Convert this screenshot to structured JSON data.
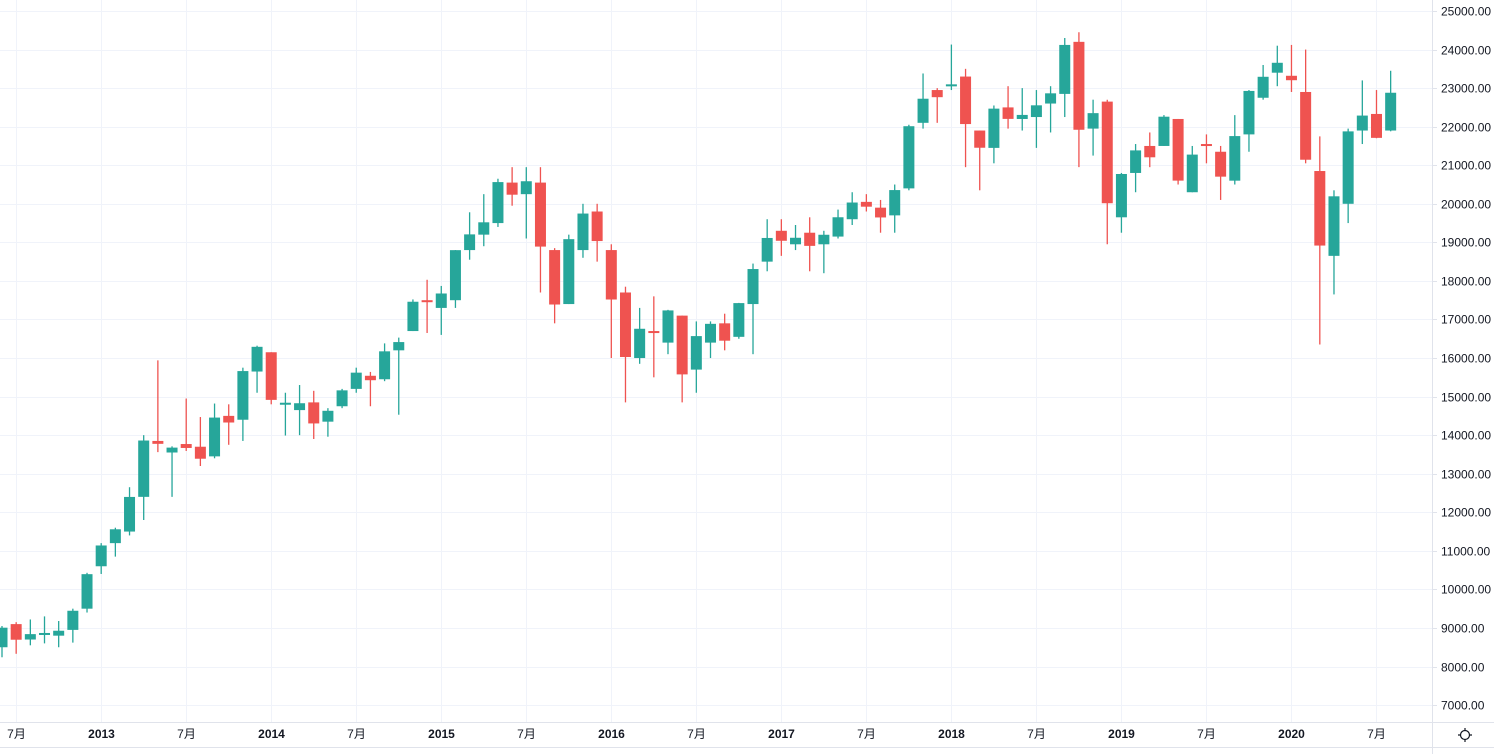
{
  "colors": {
    "up": "#26a69a",
    "down": "#ef5350",
    "grid": "#f0f3fa",
    "axis_border": "#e0e3eb",
    "text": "#131722"
  },
  "settings_icon": "gear-icon",
  "chart_data": {
    "type": "candlestick",
    "interval": "monthly",
    "ylim": [
      6800,
      25200
    ],
    "grid": true,
    "y_ticks": [
      {
        "value": 25000,
        "label": "25000.00"
      },
      {
        "value": 24000,
        "label": "24000.00"
      },
      {
        "value": 23000,
        "label": "23000.00"
      },
      {
        "value": 22000,
        "label": "22000.00"
      },
      {
        "value": 21000,
        "label": "21000.00"
      },
      {
        "value": 20000,
        "label": "20000.00"
      },
      {
        "value": 19000,
        "label": "19000.00"
      },
      {
        "value": 18000,
        "label": "18000.00"
      },
      {
        "value": 17000,
        "label": "17000.00"
      },
      {
        "value": 16000,
        "label": "16000.00"
      },
      {
        "value": 15000,
        "label": "15000.00"
      },
      {
        "value": 14000,
        "label": "14000.00"
      },
      {
        "value": 13000,
        "label": "13000.00"
      },
      {
        "value": 12000,
        "label": "12000.00"
      },
      {
        "value": 11000,
        "label": "11000.00"
      },
      {
        "value": 10000,
        "label": "10000.00"
      },
      {
        "value": 9000,
        "label": "9000.00"
      },
      {
        "value": 8000,
        "label": "8000.00"
      },
      {
        "value": 7000,
        "label": "7000.00"
      }
    ],
    "x_ticks": [
      {
        "index": 1,
        "label": "7月"
      },
      {
        "index": 7,
        "label": "2013"
      },
      {
        "index": 13,
        "label": "7月"
      },
      {
        "index": 19,
        "label": "2014"
      },
      {
        "index": 25,
        "label": "7月"
      },
      {
        "index": 31,
        "label": "2015"
      },
      {
        "index": 37,
        "label": "7月"
      },
      {
        "index": 43,
        "label": "2016"
      },
      {
        "index": 49,
        "label": "7月"
      },
      {
        "index": 55,
        "label": "2017"
      },
      {
        "index": 61,
        "label": "7月"
      },
      {
        "index": 67,
        "label": "2018"
      },
      {
        "index": 73,
        "label": "7月"
      },
      {
        "index": 79,
        "label": "2019"
      },
      {
        "index": 85,
        "label": "7月"
      },
      {
        "index": 91,
        "label": "2020"
      },
      {
        "index": 97,
        "label": "7月"
      }
    ],
    "start_month": "2012-06",
    "ohlc": [
      [
        8500,
        9050,
        8240,
        9007
      ],
      [
        9100,
        9150,
        8330,
        8695
      ],
      [
        8700,
        9220,
        8550,
        8840
      ],
      [
        8830,
        9300,
        8600,
        8870
      ],
      [
        8800,
        9180,
        8500,
        8928
      ],
      [
        8950,
        9500,
        8620,
        9446
      ],
      [
        9500,
        10430,
        9400,
        10395
      ],
      [
        10600,
        11200,
        10400,
        11139
      ],
      [
        11200,
        11600,
        10850,
        11559
      ],
      [
        11500,
        12650,
        11400,
        12398
      ],
      [
        12400,
        14000,
        11800,
        13861
      ],
      [
        13850,
        15940,
        13560,
        13775
      ],
      [
        13550,
        13710,
        12400,
        13677
      ],
      [
        13770,
        14950,
        13590,
        13668
      ],
      [
        13700,
        14470,
        13200,
        13389
      ],
      [
        13450,
        14820,
        13400,
        14456
      ],
      [
        14500,
        14800,
        13750,
        14328
      ],
      [
        14400,
        15750,
        13850,
        15662
      ],
      [
        15650,
        16320,
        15100,
        16291
      ],
      [
        16150,
        16150,
        14800,
        14915
      ],
      [
        14800,
        15100,
        13990,
        14841
      ],
      [
        14650,
        15300,
        14000,
        14828
      ],
      [
        14850,
        15150,
        13900,
        14304
      ],
      [
        14350,
        14700,
        13960,
        14632
      ],
      [
        14750,
        15200,
        14700,
        15162
      ],
      [
        15200,
        15750,
        15100,
        15621
      ],
      [
        15540,
        15640,
        14750,
        15425
      ],
      [
        15450,
        16380,
        15400,
        16174
      ],
      [
        16200,
        16530,
        14530,
        16414
      ],
      [
        16700,
        17520,
        16700,
        17460
      ],
      [
        17500,
        18030,
        16650,
        17451
      ],
      [
        17300,
        17870,
        16600,
        17674
      ],
      [
        17500,
        18800,
        17300,
        18798
      ],
      [
        18800,
        19780,
        18550,
        19207
      ],
      [
        19200,
        20250,
        18900,
        19520
      ],
      [
        19500,
        20650,
        19400,
        20563
      ],
      [
        20550,
        20950,
        19950,
        20236
      ],
      [
        20250,
        20950,
        19100,
        20585
      ],
      [
        20550,
        20950,
        17700,
        18890
      ],
      [
        18800,
        18850,
        16900,
        17388
      ],
      [
        17400,
        19200,
        17400,
        19083
      ],
      [
        18800,
        20000,
        18600,
        19747
      ],
      [
        19800,
        20000,
        18500,
        19034
      ],
      [
        18800,
        18950,
        16000,
        17518
      ],
      [
        17700,
        17850,
        14850,
        16027
      ],
      [
        16000,
        17300,
        15850,
        16759
      ],
      [
        16700,
        17600,
        15500,
        16666
      ],
      [
        16400,
        17250,
        16100,
        17235
      ],
      [
        17100,
        17100,
        14850,
        15576
      ],
      [
        15700,
        16950,
        15100,
        16569
      ],
      [
        16400,
        16950,
        16000,
        16887
      ],
      [
        16900,
        17150,
        16200,
        16450
      ],
      [
        16550,
        17430,
        16500,
        17425
      ],
      [
        17400,
        18450,
        16100,
        18308
      ],
      [
        18500,
        19600,
        18250,
        19114
      ],
      [
        19300,
        19600,
        18650,
        19041
      ],
      [
        18950,
        19450,
        18800,
        19119
      ],
      [
        19250,
        19650,
        18250,
        18909
      ],
      [
        18950,
        19300,
        18200,
        19197
      ],
      [
        19150,
        19850,
        19100,
        19651
      ],
      [
        19600,
        20300,
        19450,
        20033
      ],
      [
        20050,
        20250,
        19800,
        19925
      ],
      [
        19900,
        20100,
        19250,
        19646
      ],
      [
        19700,
        20500,
        19250,
        20356
      ],
      [
        20400,
        22050,
        20350,
        22012
      ],
      [
        22100,
        23380,
        21950,
        22725
      ],
      [
        22950,
        23000,
        22100,
        22765
      ],
      [
        23070,
        24130,
        22950,
        23098
      ],
      [
        23300,
        23500,
        20950,
        22068
      ],
      [
        21900,
        21900,
        20350,
        21454
      ],
      [
        21450,
        22550,
        21050,
        22468
      ],
      [
        22500,
        23050,
        21950,
        22202
      ],
      [
        22200,
        23000,
        21900,
        22305
      ],
      [
        22250,
        22950,
        21450,
        22554
      ],
      [
        22600,
        23050,
        21850,
        22865
      ],
      [
        22850,
        24300,
        22250,
        24120
      ],
      [
        24200,
        24450,
        20950,
        21920
      ],
      [
        21950,
        22700,
        21250,
        22351
      ],
      [
        22650,
        22700,
        18950,
        20015
      ],
      [
        19650,
        20800,
        19250,
        20773
      ],
      [
        20800,
        21550,
        20300,
        21385
      ],
      [
        21500,
        21850,
        20950,
        21206
      ],
      [
        21500,
        22300,
        21500,
        22259
      ],
      [
        22200,
        22200,
        20500,
        20601
      ],
      [
        20300,
        21500,
        20300,
        21276
      ],
      [
        21550,
        21800,
        21050,
        21522
      ],
      [
        21350,
        21500,
        20100,
        20704
      ],
      [
        20600,
        22300,
        20500,
        21756
      ],
      [
        21800,
        22950,
        21350,
        22927
      ],
      [
        22750,
        23600,
        22700,
        23294
      ],
      [
        23400,
        24100,
        23050,
        23657
      ],
      [
        23320,
        24120,
        22900,
        23205
      ],
      [
        22900,
        24000,
        21050,
        21143
      ],
      [
        20850,
        21750,
        16350,
        18917
      ],
      [
        18650,
        20350,
        17650,
        20194
      ],
      [
        20000,
        21950,
        19500,
        21878
      ],
      [
        21900,
        23200,
        21550,
        22288
      ],
      [
        22330,
        22950,
        21700,
        21710
      ],
      [
        21900,
        23450,
        21880,
        22880
      ]
    ]
  }
}
